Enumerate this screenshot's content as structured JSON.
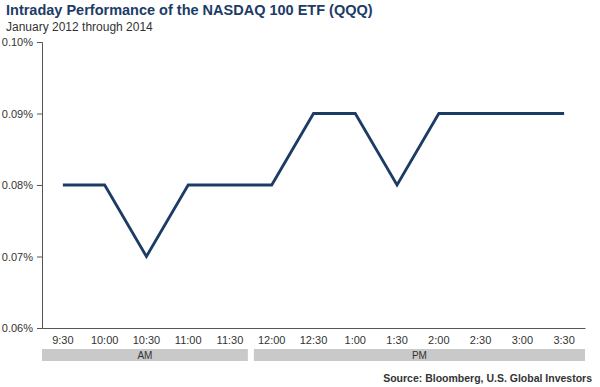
{
  "chart_data": {
    "type": "line",
    "title": "Intraday Performance of the NASDAQ 100 ETF (QQQ)",
    "subtitle": "January 2012 through 2014",
    "source": "Source: Bloomberg, U.S. Global Investors",
    "categories": [
      "9:30",
      "10:00",
      "10:30",
      "11:00",
      "11:30",
      "12:00",
      "12:30",
      "1:00",
      "1:30",
      "2:00",
      "2:30",
      "3:00",
      "3:30"
    ],
    "values": [
      0.08,
      0.08,
      0.07,
      0.08,
      0.08,
      0.08,
      0.09,
      0.09,
      0.08,
      0.09,
      0.09,
      0.09,
      0.09
    ],
    "color": "#1c3c66",
    "x_groups": [
      {
        "label": "AM",
        "span": [
          0,
          4
        ]
      },
      {
        "label": "PM",
        "span": [
          5,
          12
        ]
      }
    ],
    "ylim": [
      0.06,
      0.1
    ],
    "yticks": [
      {
        "value": 0.06,
        "label": "0.06%"
      },
      {
        "value": 0.07,
        "label": "0.07%"
      },
      {
        "value": 0.08,
        "label": "0.08%"
      },
      {
        "value": 0.09,
        "label": "0.09%"
      },
      {
        "value": 0.1,
        "label": "0.10%"
      }
    ],
    "grid": false
  }
}
